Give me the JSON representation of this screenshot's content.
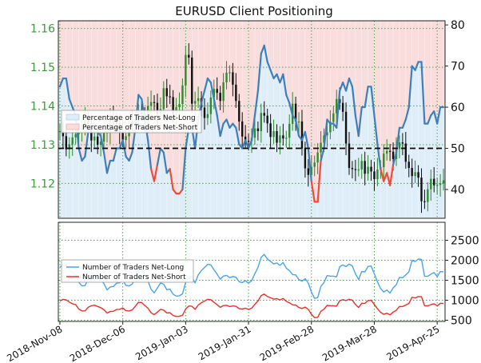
{
  "colors": {
    "long_band": "#deedf7",
    "short_band": "#f9dcdc",
    "long_line_top": "#3d7fb9",
    "short_line_top": "#ee4b3a",
    "long_line_bottom": "#4aa3e6",
    "short_line_bottom": "#e8302a",
    "candle_up": "#2e8b2e",
    "candle_down": "#111111",
    "grid": "#4aa64a",
    "left_axis_text": "#3a9a3a"
  },
  "chart_data": [
    {
      "type": "candlestick-with-sentiment",
      "title": "EURUSD Client Positioning",
      "x_dates": [
        "2018-Nov-08",
        "2018-Dec-06",
        "2019-Jan-03",
        "2019-Jan-31",
        "2019-Feb-28",
        "2019-Mar-28",
        "2019-Apr-25"
      ],
      "y_left": {
        "ticks": [
          1.12,
          1.13,
          1.14,
          1.15,
          1.16
        ],
        "ylim": [
          1.111,
          1.162
        ]
      },
      "y_right": {
        "ticks": [
          40,
          50,
          60,
          70,
          80
        ],
        "ylim": [
          33,
          81
        ]
      },
      "reference_line": 50,
      "grid": true,
      "legend": {
        "placement": "left",
        "entries": [
          "Percentage of Traders Net-Long",
          "Percentage of Traders Net-Short"
        ]
      },
      "close_prices": [
        1.1335,
        1.1322,
        1.1288,
        1.1301,
        1.1319,
        1.1327,
        1.1338,
        1.1342,
        1.1367,
        1.1354,
        1.1311,
        1.1321,
        1.13,
        1.1308,
        1.133,
        1.1332,
        1.1371,
        1.1366,
        1.1355,
        1.1332,
        1.1312,
        1.1322,
        1.1353,
        1.136,
        1.1366,
        1.1382,
        1.1379,
        1.1359,
        1.14,
        1.141,
        1.1408,
        1.1379,
        1.1392,
        1.1446,
        1.1425,
        1.1423,
        1.1381,
        1.1397,
        1.1405,
        1.1453,
        1.1532,
        1.1525,
        1.1406,
        1.1413,
        1.142,
        1.1396,
        1.1369,
        1.1379,
        1.1422,
        1.1444,
        1.1434,
        1.1413,
        1.1461,
        1.1486,
        1.1487,
        1.1455,
        1.1413,
        1.136,
        1.1321,
        1.131,
        1.1309,
        1.1318,
        1.1342,
        1.1335,
        1.1382,
        1.1375,
        1.1355,
        1.132,
        1.1335,
        1.1305,
        1.1324,
        1.1316,
        1.1318,
        1.1354,
        1.1406,
        1.136,
        1.136,
        1.129,
        1.1239,
        1.1222,
        1.1243,
        1.1254,
        1.128,
        1.1305,
        1.1324,
        1.1332,
        1.1359,
        1.1381,
        1.1418,
        1.1408,
        1.1385,
        1.1303,
        1.124,
        1.1237,
        1.1236,
        1.1236,
        1.1258,
        1.1225,
        1.1243,
        1.1231,
        1.1211,
        1.1236,
        1.1242,
        1.1277,
        1.1284,
        1.1282,
        1.1263,
        1.1289,
        1.1306,
        1.1303,
        1.1256,
        1.124,
        1.1219,
        1.1229,
        1.1215,
        1.1154,
        1.1152,
        1.1185,
        1.1212,
        1.1195,
        1.1196,
        1.12,
        1.1208
      ],
      "net_long_pct": [
        65,
        67,
        67,
        62,
        60,
        58,
        50,
        47,
        48,
        54,
        56,
        56,
        54,
        53,
        49,
        44,
        47,
        47,
        50,
        50,
        52,
        48,
        47,
        49,
        55,
        63,
        62,
        57,
        52,
        45,
        42,
        46,
        50,
        49,
        44,
        45,
        40,
        39,
        39,
        40,
        50,
        55,
        55,
        50,
        57,
        61,
        64,
        67,
        66,
        62,
        58,
        53,
        56,
        57,
        55,
        56,
        55,
        51,
        50,
        52,
        50,
        52,
        58,
        64,
        73,
        75,
        71,
        69,
        67,
        68,
        66,
        68,
        63,
        61,
        58,
        57,
        53,
        52,
        54,
        50,
        42,
        37,
        37,
        47,
        50,
        57,
        56,
        56,
        55,
        64,
        66,
        64,
        67,
        65,
        58,
        53,
        60,
        60,
        65,
        65,
        58,
        51,
        45,
        42,
        44,
        41,
        46,
        49,
        55,
        55,
        57,
        60,
        70,
        69,
        71,
        71,
        56,
        56,
        58,
        59,
        56,
        60,
        60
      ],
      "net_short_pct": [
        35,
        33,
        33,
        38,
        40,
        42,
        50,
        53,
        52,
        46,
        44,
        44,
        46,
        47,
        51,
        56,
        53,
        53,
        50,
        50,
        48,
        52,
        53,
        51,
        45,
        37,
        38,
        43,
        48,
        55,
        58,
        54,
        50,
        51,
        56,
        55,
        60,
        61,
        61,
        60,
        50,
        45,
        45,
        50,
        43,
        39,
        36,
        33,
        34,
        38,
        42,
        47,
        44,
        43,
        45,
        44,
        45,
        49,
        50,
        48,
        50,
        48,
        42,
        36,
        27,
        25,
        29,
        31,
        33,
        32,
        34,
        32,
        37,
        39,
        42,
        43,
        47,
        48,
        46,
        50,
        58,
        63,
        63,
        53,
        50,
        43,
        44,
        44,
        45,
        36,
        34,
        36,
        33,
        35,
        42,
        47,
        40,
        40,
        35,
        35,
        42,
        49,
        55,
        58,
        56,
        59,
        54,
        51,
        45,
        45,
        43,
        40,
        30,
        31,
        29,
        29,
        44,
        44,
        42,
        41,
        44,
        40,
        40
      ]
    },
    {
      "type": "line",
      "y_right": {
        "ticks": [
          500,
          1000,
          1500,
          2000,
          2500
        ],
        "ylim": [
          470,
          2950
        ]
      },
      "grid": true,
      "legend": {
        "placement": "left",
        "entries": [
          "Number of Traders Net-Long",
          "Number of Traders Net-Short"
        ]
      },
      "series": [
        {
          "name": "Number of Traders Net-Long",
          "values": [
            1820,
            1900,
            1875,
            1774,
            1690,
            1654,
            1449,
            1357,
            1366,
            1529,
            1601,
            1626,
            1569,
            1514,
            1415,
            1258,
            1332,
            1346,
            1426,
            1436,
            1502,
            1373,
            1359,
            1405,
            1579,
            1761,
            1751,
            1613,
            1488,
            1274,
            1184,
            1309,
            1433,
            1402,
            1262,
            1279,
            1152,
            1105,
            1111,
            1159,
            1454,
            1589,
            1573,
            1435,
            1634,
            1741,
            1820,
            1897,
            1885,
            1761,
            1651,
            1525,
            1604,
            1623,
            1564,
            1595,
            1574,
            1465,
            1443,
            1487,
            1427,
            1488,
            1664,
            1822,
            2073,
            2146,
            2030,
            1974,
            1909,
            1932,
            1871,
            1941,
            1804,
            1743,
            1643,
            1635,
            1520,
            1476,
            1540,
            1433,
            1203,
            1048,
            1064,
            1346,
            1441,
            1616,
            1605,
            1601,
            1584,
            1838,
            1885,
            1843,
            1904,
            1860,
            1660,
            1517,
            1716,
            1710,
            1845,
            1858,
            1657,
            1462,
            1294,
            1206,
            1254,
            1179,
            1310,
            1390,
            1570,
            1562,
            1635,
            1709,
            1997,
            1967,
            2030,
            2023,
            1599,
            1597,
            1651,
            1693,
            1591,
            1718,
            1707
          ]
        },
        {
          "name": "Number of Traders Net-Short",
          "values": [
            980,
            1023,
            1009,
            955,
            910,
            891,
            780,
            731,
            735,
            823,
            862,
            876,
            845,
            815,
            762,
            677,
            717,
            725,
            767,
            773,
            809,
            739,
            732,
            757,
            850,
            948,
            943,
            869,
            801,
            686,
            638,
            705,
            772,
            755,
            680,
            688,
            620,
            595,
            598,
            624,
            783,
            856,
            847,
            773,
            880,
            937,
            980,
            1021,
            1015,
            948,
            889,
            821,
            864,
            874,
            842,
            859,
            847,
            789,
            777,
            801,
            768,
            801,
            896,
            981,
            1116,
            1155,
            1093,
            1063,
            1028,
            1040,
            1007,
            1045,
            971,
            938,
            885,
            880,
            818,
            795,
            829,
            772,
            648,
            564,
            573,
            725,
            776,
            870,
            864,
            862,
            853,
            990,
            1015,
            992,
            1025,
            1002,
            894,
            817,
            924,
            921,
            993,
            1000,
            892,
            787,
            697,
            649,
            675,
            635,
            705,
            748,
            845,
            841,
            880,
            920,
            1075,
            1059,
            1093,
            1089,
            861,
            860,
            889,
            912,
            857,
            925,
            919
          ]
        }
      ]
    }
  ]
}
